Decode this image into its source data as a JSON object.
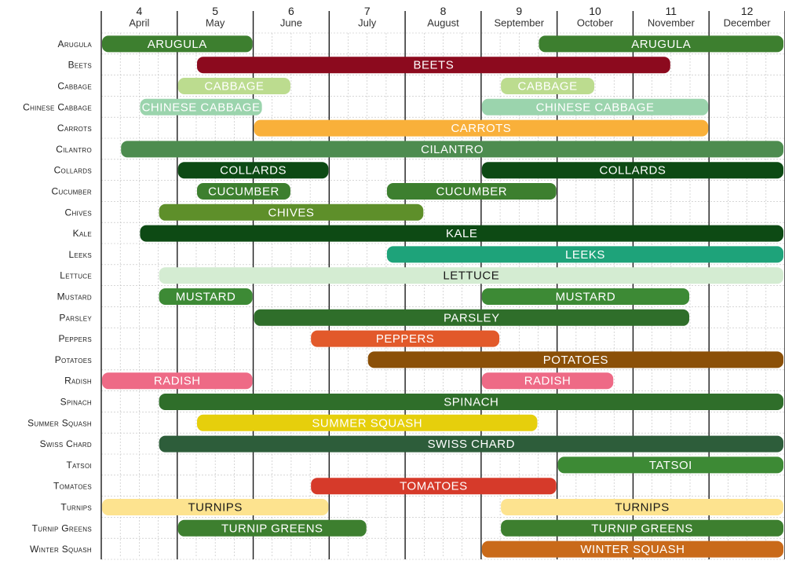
{
  "chart_data": {
    "type": "gantt",
    "title": "",
    "x_unit": "month",
    "xlim": [
      3.5,
      12.5
    ],
    "months": [
      {
        "num": "4",
        "name": "April"
      },
      {
        "num": "5",
        "name": "May"
      },
      {
        "num": "6",
        "name": "June"
      },
      {
        "num": "7",
        "name": "July"
      },
      {
        "num": "8",
        "name": "August"
      },
      {
        "num": "9",
        "name": "September"
      },
      {
        "num": "10",
        "name": "October"
      },
      {
        "num": "11",
        "name": "November"
      },
      {
        "num": "12",
        "name": "December"
      }
    ],
    "rows": [
      {
        "name": "Arugula",
        "bars": [
          {
            "label": "ARUGULA",
            "start": 3.5,
            "end": 5.5,
            "color": "#3d7f2f",
            "text": "#ffffff"
          },
          {
            "label": "ARUGULA",
            "start": 9.25,
            "end": 12.5,
            "color": "#3d7f2f",
            "text": "#ffffff"
          }
        ]
      },
      {
        "name": "Beets",
        "bars": [
          {
            "label": "BEETS",
            "start": 4.75,
            "end": 11.0,
            "color": "#8c0a1e",
            "text": "#ffffff"
          }
        ]
      },
      {
        "name": "Cabbage",
        "bars": [
          {
            "label": "CABBAGE",
            "start": 4.5,
            "end": 6.0,
            "color": "#bcdc8f",
            "text": "#ffffff"
          },
          {
            "label": "CABBAGE",
            "start": 8.75,
            "end": 10.0,
            "color": "#bcdc8f",
            "text": "#ffffff"
          }
        ]
      },
      {
        "name": "Chinese Cabbage",
        "bars": [
          {
            "label": "CHINESE CABBAGE",
            "start": 4.0,
            "end": 5.625,
            "color": "#9bd4ad",
            "text": "#ffffff"
          },
          {
            "label": "CHINESE CABBAGE",
            "start": 8.5,
            "end": 11.5,
            "color": "#9bd4ad",
            "text": "#ffffff"
          }
        ]
      },
      {
        "name": "Carrots",
        "bars": [
          {
            "label": "CARROTS",
            "start": 5.5,
            "end": 11.5,
            "color": "#f9b03a",
            "text": "#ffffff"
          }
        ]
      },
      {
        "name": "Cilantro",
        "bars": [
          {
            "label": "CILANTRO",
            "start": 3.75,
            "end": 12.5,
            "color": "#4d8c4f",
            "text": "#ffffff"
          }
        ]
      },
      {
        "name": "Collards",
        "bars": [
          {
            "label": "COLLARDS",
            "start": 4.5,
            "end": 6.5,
            "color": "#0d4a14",
            "text": "#ffffff"
          },
          {
            "label": "COLLARDS",
            "start": 8.5,
            "end": 12.5,
            "color": "#0d4a14",
            "text": "#ffffff"
          }
        ]
      },
      {
        "name": "Cucumber",
        "bars": [
          {
            "label": "CUCUMBER",
            "start": 4.75,
            "end": 6.0,
            "color": "#3d7f2f",
            "text": "#ffffff"
          },
          {
            "label": "CUCUMBER",
            "start": 7.25,
            "end": 9.5,
            "color": "#3d7f2f",
            "text": "#ffffff"
          }
        ]
      },
      {
        "name": "Chives",
        "bars": [
          {
            "label": "CHIVES",
            "start": 4.25,
            "end": 7.75,
            "color": "#5e8f2a",
            "text": "#ffffff"
          }
        ]
      },
      {
        "name": "Kale",
        "bars": [
          {
            "label": "KALE",
            "start": 4.0,
            "end": 12.5,
            "color": "#0d4a14",
            "text": "#ffffff"
          }
        ]
      },
      {
        "name": "Leeks",
        "bars": [
          {
            "label": "LEEKS",
            "start": 7.25,
            "end": 12.5,
            "color": "#1ea37a",
            "text": "#ffffff"
          }
        ]
      },
      {
        "name": "Lettuce",
        "bars": [
          {
            "label": "LETTUCE",
            "start": 4.25,
            "end": 12.5,
            "color": "#d4ecd2",
            "text": "#1a1a1a"
          }
        ]
      },
      {
        "name": "Mustard",
        "bars": [
          {
            "label": "MUSTARD",
            "start": 4.25,
            "end": 5.5,
            "color": "#3d8a35",
            "text": "#ffffff"
          },
          {
            "label": "MUSTARD",
            "start": 8.5,
            "end": 11.25,
            "color": "#3d8a35",
            "text": "#ffffff"
          }
        ]
      },
      {
        "name": "Parsley",
        "bars": [
          {
            "label": "PARSLEY",
            "start": 5.5,
            "end": 11.25,
            "color": "#2f6e2a",
            "text": "#ffffff"
          }
        ]
      },
      {
        "name": "Peppers",
        "bars": [
          {
            "label": "PEPPERS",
            "start": 6.25,
            "end": 8.75,
            "color": "#e2592a",
            "text": "#ffffff"
          }
        ]
      },
      {
        "name": "Potatoes",
        "bars": [
          {
            "label": "POTATOES",
            "start": 7.0,
            "end": 12.5,
            "color": "#8b5008",
            "text": "#ffffff"
          }
        ]
      },
      {
        "name": "Radish",
        "bars": [
          {
            "label": "RADISH",
            "start": 3.5,
            "end": 5.5,
            "color": "#ee6a86",
            "text": "#ffffff"
          },
          {
            "label": "RADISH",
            "start": 8.5,
            "end": 10.25,
            "color": "#ee6a86",
            "text": "#ffffff"
          }
        ]
      },
      {
        "name": "Spinach",
        "bars": [
          {
            "label": "SPINACH",
            "start": 4.25,
            "end": 12.5,
            "color": "#2f6e2a",
            "text": "#ffffff"
          }
        ]
      },
      {
        "name": "Summer Squash",
        "bars": [
          {
            "label": "SUMMER SQUASH",
            "start": 4.75,
            "end": 9.25,
            "color": "#e6cf0c",
            "text": "#ffffff"
          }
        ]
      },
      {
        "name": "Swiss Chard",
        "bars": [
          {
            "label": "SWISS CHARD",
            "start": 4.25,
            "end": 12.5,
            "color": "#2d5d3a",
            "text": "#ffffff"
          }
        ]
      },
      {
        "name": "Tatsoi",
        "bars": [
          {
            "label": "TATSOI",
            "start": 9.5,
            "end": 12.5,
            "color": "#3d8a35",
            "text": "#ffffff"
          }
        ]
      },
      {
        "name": "Tomatoes",
        "bars": [
          {
            "label": "TOMATOES",
            "start": 6.25,
            "end": 9.5,
            "color": "#d63a2a",
            "text": "#ffffff"
          }
        ]
      },
      {
        "name": "Turnips",
        "bars": [
          {
            "label": "TURNIPS",
            "start": 3.5,
            "end": 6.5,
            "color": "#fde38f",
            "text": "#1a1a1a"
          },
          {
            "label": "TURNIPS",
            "start": 8.75,
            "end": 12.5,
            "color": "#fde38f",
            "text": "#1a1a1a"
          }
        ]
      },
      {
        "name": "Turnip Greens",
        "bars": [
          {
            "label": "TURNIP GREENS",
            "start": 4.5,
            "end": 7.0,
            "color": "#3d7f2f",
            "text": "#ffffff"
          },
          {
            "label": "TURNIP GREENS",
            "start": 8.75,
            "end": 12.5,
            "color": "#3d7f2f",
            "text": "#ffffff"
          }
        ]
      },
      {
        "name": "Winter Squash",
        "bars": [
          {
            "label": "WINTER SQUASH",
            "start": 8.5,
            "end": 12.5,
            "color": "#c96a1a",
            "text": "#ffffff"
          }
        ]
      }
    ]
  }
}
